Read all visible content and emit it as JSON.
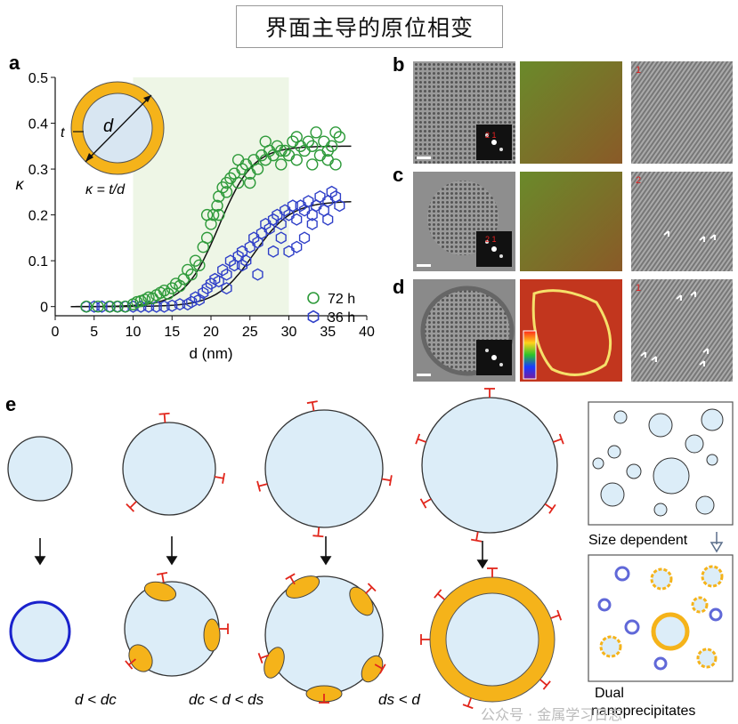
{
  "title": "界面主导的原位相变",
  "panels": {
    "a": "a",
    "b": "b",
    "c": "c",
    "d": "d",
    "e": "e"
  },
  "inset": {
    "d": "d",
    "t": "t",
    "formula": "κ = t/d"
  },
  "images": {
    "b_tag": "1",
    "c_tag": "2",
    "d_tag": "1",
    "fft_b": "2 1",
    "fft_c": "2 1"
  },
  "schematic": {
    "cond1": "d < dc",
    "cond2": "dc < d < ds",
    "cond3": "ds < d",
    "size_dependent": "Size dependent",
    "dual_1": "Dual",
    "dual_2": "nanoprecipitates"
  },
  "watermark": "公众号 · 金属学习日志",
  "chart_data": {
    "type": "scatter",
    "xlabel": "d (nm)",
    "ylabel": "κ",
    "xlim": [
      0,
      40
    ],
    "ylim": [
      -0.02,
      0.5
    ],
    "xticks": [
      0,
      5,
      10,
      15,
      20,
      25,
      30,
      35,
      40
    ],
    "yticks": [
      0,
      0.1,
      0.2,
      0.3,
      0.4,
      0.5
    ],
    "highlight_x": [
      10,
      30
    ],
    "legend": [
      "72 h",
      "36 h"
    ],
    "series": [
      {
        "name": "72 h",
        "marker": "circle",
        "color": "#2e9a3a",
        "points": [
          [
            4,
            0
          ],
          [
            5.5,
            0
          ],
          [
            7,
            0
          ],
          [
            8,
            0
          ],
          [
            9,
            0
          ],
          [
            10,
            0.005
          ],
          [
            10.5,
            0.01
          ],
          [
            11,
            0.012
          ],
          [
            11.5,
            0.015
          ],
          [
            12,
            0.02
          ],
          [
            12.5,
            0.018
          ],
          [
            13,
            0.025
          ],
          [
            13.5,
            0.03
          ],
          [
            14,
            0.035
          ],
          [
            14.5,
            0.028
          ],
          [
            15,
            0.04
          ],
          [
            15.5,
            0.05
          ],
          [
            16,
            0.045
          ],
          [
            16.5,
            0.06
          ],
          [
            17,
            0.08
          ],
          [
            17.5,
            0.07
          ],
          [
            18,
            0.1
          ],
          [
            18.5,
            0.09
          ],
          [
            19,
            0.13
          ],
          [
            19.5,
            0.15
          ],
          [
            20,
            0.18
          ],
          [
            20.3,
            0.2
          ],
          [
            20.8,
            0.22
          ],
          [
            21,
            0.24
          ],
          [
            21.5,
            0.26
          ],
          [
            22,
            0.25
          ],
          [
            22.5,
            0.28
          ],
          [
            23,
            0.29
          ],
          [
            23.5,
            0.27
          ],
          [
            24,
            0.3
          ],
          [
            24.5,
            0.31
          ],
          [
            25,
            0.29
          ],
          [
            25.5,
            0.32
          ],
          [
            26,
            0.3
          ],
          [
            26.5,
            0.33
          ],
          [
            27,
            0.32
          ],
          [
            27.5,
            0.34
          ],
          [
            28,
            0.33
          ],
          [
            28.5,
            0.35
          ],
          [
            29,
            0.31
          ],
          [
            29.5,
            0.34
          ],
          [
            30,
            0.33
          ],
          [
            30.5,
            0.36
          ],
          [
            31,
            0.32
          ],
          [
            31.5,
            0.35
          ],
          [
            32,
            0.34
          ],
          [
            32.5,
            0.36
          ],
          [
            33,
            0.35
          ],
          [
            33.5,
            0.38
          ],
          [
            34,
            0.33
          ],
          [
            34.5,
            0.36
          ],
          [
            35,
            0.32
          ],
          [
            35.5,
            0.35
          ],
          [
            36,
            0.38
          ],
          [
            36.5,
            0.37
          ],
          [
            19.5,
            0.2
          ],
          [
            21,
            0.2
          ],
          [
            22,
            0.27
          ],
          [
            23.5,
            0.32
          ],
          [
            25,
            0.27
          ],
          [
            27,
            0.36
          ],
          [
            29,
            0.34
          ],
          [
            31,
            0.37
          ],
          [
            33,
            0.31
          ],
          [
            35,
            0.34
          ],
          [
            36,
            0.31
          ]
        ]
      },
      {
        "name": "36 h",
        "marker": "hexagon",
        "color": "#2f3fc8",
        "points": [
          [
            4,
            0
          ],
          [
            5,
            0
          ],
          [
            6,
            0
          ],
          [
            7,
            0
          ],
          [
            8,
            0
          ],
          [
            9,
            0
          ],
          [
            10,
            0
          ],
          [
            11,
            0
          ],
          [
            12,
            0
          ],
          [
            13,
            0
          ],
          [
            14,
            0
          ],
          [
            15,
            0.002
          ],
          [
            16,
            0.005
          ],
          [
            17,
            0.005
          ],
          [
            17.5,
            0.01
          ],
          [
            18,
            0.02
          ],
          [
            18.5,
            0.015
          ],
          [
            19,
            0.03
          ],
          [
            19.5,
            0.04
          ],
          [
            20,
            0.05
          ],
          [
            20.5,
            0.06
          ],
          [
            21,
            0.055
          ],
          [
            21.5,
            0.08
          ],
          [
            22,
            0.07
          ],
          [
            22.5,
            0.1
          ],
          [
            23,
            0.09
          ],
          [
            23.5,
            0.11
          ],
          [
            24,
            0.12
          ],
          [
            24.5,
            0.1
          ],
          [
            25,
            0.13
          ],
          [
            25.5,
            0.15
          ],
          [
            26,
            0.14
          ],
          [
            26.5,
            0.16
          ],
          [
            27,
            0.18
          ],
          [
            27.5,
            0.17
          ],
          [
            28,
            0.19
          ],
          [
            28.5,
            0.2
          ],
          [
            29,
            0.18
          ],
          [
            29.5,
            0.21
          ],
          [
            30,
            0.2
          ],
          [
            30.5,
            0.22
          ],
          [
            31,
            0.19
          ],
          [
            31.5,
            0.22
          ],
          [
            32,
            0.21
          ],
          [
            32.5,
            0.23
          ],
          [
            33,
            0.2
          ],
          [
            33.5,
            0.22
          ],
          [
            34,
            0.24
          ],
          [
            34.5,
            0.21
          ],
          [
            35,
            0.23
          ],
          [
            35.5,
            0.25
          ],
          [
            36,
            0.24
          ],
          [
            36.5,
            0.22
          ],
          [
            26,
            0.07
          ],
          [
            28,
            0.12
          ],
          [
            30,
            0.12
          ],
          [
            31,
            0.13
          ],
          [
            32,
            0.15
          ],
          [
            24,
            0.09
          ],
          [
            22,
            0.04
          ],
          [
            33,
            0.18
          ],
          [
            35,
            0.19
          ],
          [
            29,
            0.15
          ]
        ]
      }
    ],
    "fits": [
      {
        "name": "72 h",
        "k": 0.35,
        "x0": 21,
        "w": 2.2
      },
      {
        "name": "36 h",
        "k": 0.23,
        "x0": 25.5,
        "w": 2.4
      }
    ]
  }
}
